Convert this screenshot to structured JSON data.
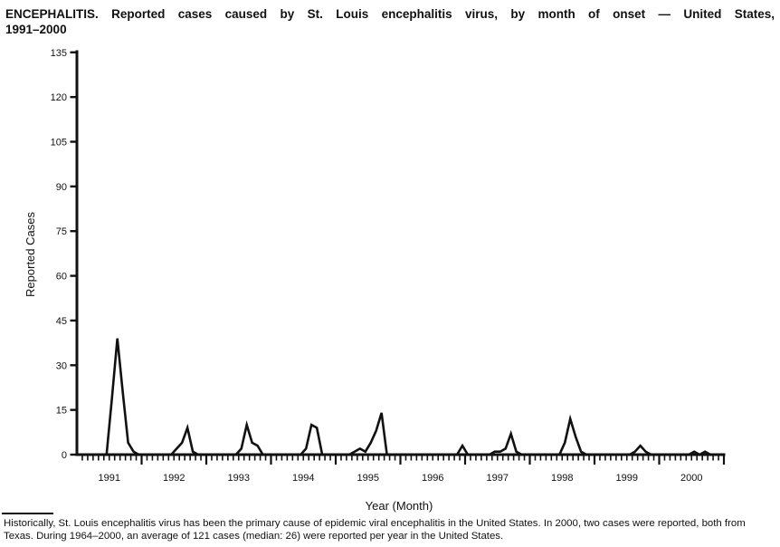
{
  "title_lines": [
    "ENCEPHALITIS. Reported cases caused by St. Louis encephalitis virus, by month of onset — United States,",
    "1991–2000"
  ],
  "footnote": "Historically, St. Louis encephalitis virus has been the primary cause of epidemic viral encephalitis in the United States. In 2000, two cases were reported, both from Texas. During 1964–2000, an average of 121 cases (median: 26) were reported per year in the United States.",
  "chart_data": {
    "type": "line",
    "title": "ENCEPHALITIS. Reported cases caused by St. Louis encephalitis virus, by month of onset — United States, 1991–2000",
    "xlabel": "Year (Month)",
    "ylabel": "Reported Cases",
    "ylim": [
      0,
      135
    ],
    "yticks": [
      0,
      15,
      30,
      45,
      60,
      75,
      90,
      105,
      120,
      135
    ],
    "grid": false,
    "legend": "none",
    "line_color": "#111111",
    "x_structure": "120 monthly points Jan 1991 through Dec 2000; minor ticks each month, long ticks at year boundaries",
    "years": [
      "1991",
      "1992",
      "1993",
      "1994",
      "1995",
      "1996",
      "1997",
      "1998",
      "1999",
      "2000"
    ],
    "series": [
      {
        "name": "Reported cases by month of onset",
        "monthly_values_by_year": {
          "1991": [
            0,
            0,
            0,
            0,
            0,
            0,
            19,
            39,
            21,
            4,
            1,
            0
          ],
          "1992": [
            0,
            0,
            0,
            0,
            0,
            0,
            2,
            4,
            9,
            1,
            0,
            0
          ],
          "1993": [
            0,
            0,
            0,
            0,
            0,
            0,
            2,
            10,
            4,
            3,
            0,
            0
          ],
          "1994": [
            0,
            0,
            0,
            0,
            0,
            0,
            2,
            10,
            9,
            0,
            0,
            0
          ],
          "1995": [
            0,
            0,
            0,
            1,
            2,
            1,
            4,
            8,
            14,
            0,
            0,
            0
          ],
          "1996": [
            0,
            0,
            0,
            0,
            0,
            0,
            0,
            0,
            0,
            0,
            0,
            3
          ],
          "1997": [
            0,
            0,
            0,
            0,
            0,
            1,
            1,
            2,
            7,
            1,
            0,
            0
          ],
          "1998": [
            0,
            0,
            0,
            0,
            0,
            0,
            4,
            12,
            6,
            1,
            0,
            0
          ],
          "1999": [
            0,
            0,
            0,
            0,
            0,
            0,
            0,
            1,
            3,
            1,
            0,
            0
          ],
          "2000": [
            0,
            0,
            0,
            0,
            0,
            0,
            1,
            0,
            1,
            0,
            0,
            0
          ]
        }
      }
    ]
  }
}
